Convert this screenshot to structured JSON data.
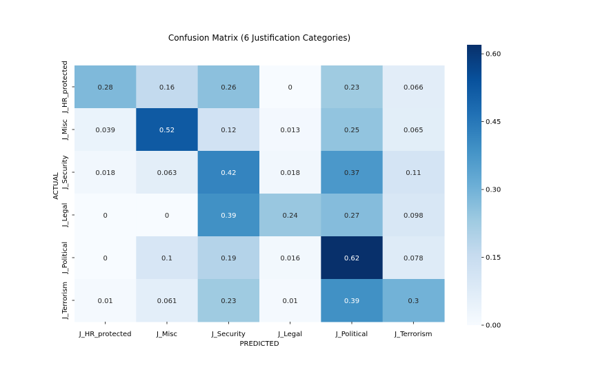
{
  "chart_data": {
    "type": "heatmap",
    "title": "Confusion Matrix (6 Justification Categories)",
    "xlabel": "PREDICTED",
    "ylabel": "ACTUAL",
    "x_categories": [
      "J_HR_protected",
      "J_Misc",
      "J_Security",
      "J_Legal",
      "J_Political",
      "J_Terrorism"
    ],
    "y_categories": [
      "J_HR_protected",
      "J_Misc",
      "J_Security",
      "J_Legal",
      "J_Political",
      "J_Terrorism"
    ],
    "values": [
      [
        0.28,
        0.16,
        0.26,
        0,
        0.23,
        0.066
      ],
      [
        0.039,
        0.52,
        0.12,
        0.013,
        0.25,
        0.065
      ],
      [
        0.018,
        0.063,
        0.42,
        0.018,
        0.37,
        0.11
      ],
      [
        0,
        0,
        0.39,
        0.24,
        0.27,
        0.098
      ],
      [
        0,
        0.1,
        0.19,
        0.016,
        0.62,
        0.078
      ],
      [
        0.01,
        0.061,
        0.23,
        0.01,
        0.39,
        0.3
      ]
    ],
    "colormap": "Blues",
    "vmin": 0,
    "vmax": 0.62,
    "colorbar_ticks": [
      0.0,
      0.15,
      0.3,
      0.45,
      0.6
    ],
    "colorbar_tick_labels": [
      "0.00",
      "0.15",
      "0.30",
      "0.45",
      "0.60"
    ]
  }
}
